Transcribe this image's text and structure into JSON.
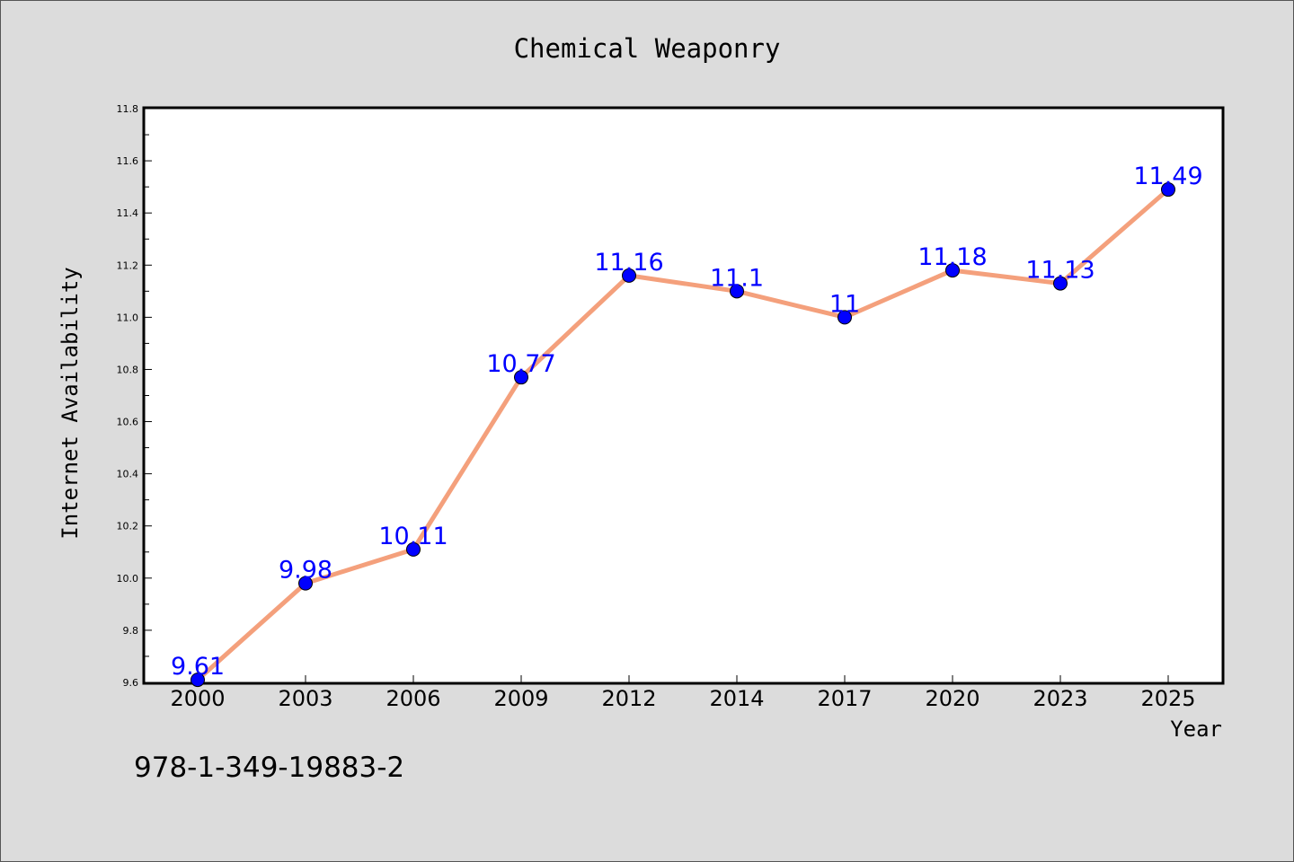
{
  "chart_data": {
    "type": "line",
    "title": "Chemical Weaponry",
    "xlabel": "Year",
    "ylabel": "Internet Availability",
    "categories": [
      "2000",
      "2003",
      "2006",
      "2009",
      "2012",
      "2014",
      "2017",
      "2020",
      "2023",
      "2025"
    ],
    "values": [
      9.61,
      9.98,
      10.11,
      10.77,
      11.16,
      11.1,
      11.0,
      11.18,
      11.13,
      11.49
    ],
    "data_labels": [
      "9.61",
      "9.98",
      "10.11",
      "10.77",
      "11.16",
      "11.1",
      "11",
      "11.18",
      "11.13",
      "11.49"
    ],
    "ylim": [
      9.6,
      11.8
    ],
    "yticks": [
      "9.6",
      "9.8",
      "10.0",
      "10.2",
      "10.4",
      "10.6",
      "10.8",
      "11.0",
      "11.2",
      "11.4",
      "11.6",
      "11.8"
    ],
    "grid": false,
    "legend": "none",
    "colors": {
      "line": "#f4a07c",
      "marker": "#0000ff",
      "label": "#0000ff",
      "background": "#dcdcdc",
      "plot_background": "#ffffff"
    }
  },
  "footer": {
    "isbn": "978-1-349-19883-2"
  }
}
